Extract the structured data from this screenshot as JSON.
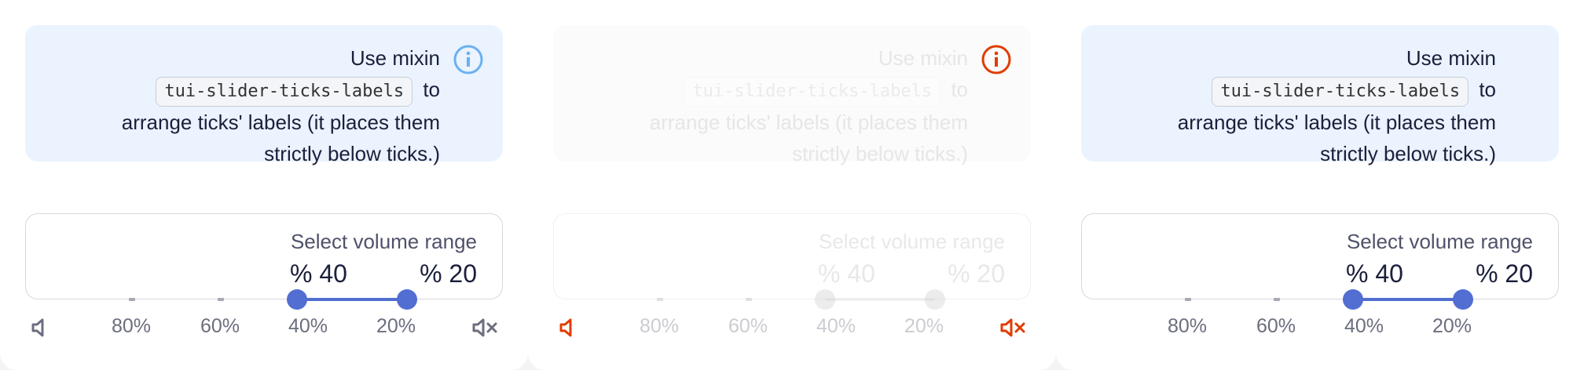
{
  "colors": {
    "accent": "#526ed3",
    "info": "#6bb0f0",
    "warning": "#e03c00"
  },
  "panels": [
    {
      "notice": {
        "prefix": "Use mixin",
        "code": "tui-slider-ticks-labels",
        "text": "to arrange ticks' labels (it places them strictly below ticks.)",
        "icon": "info-icon"
      },
      "field": {
        "label": "Select volume range",
        "value_from": "40 %",
        "value_to": "20 %"
      },
      "ticks": [
        "80%",
        "60%",
        "40%",
        "20%"
      ],
      "start_icon": "volume-low-icon",
      "end_icon": "volume-mute-icon"
    },
    {
      "notice": {
        "prefix": "Use mixin",
        "code": "tui-slider-ticks-labels",
        "text": "to arrange ticks' labels (it places them strictly below ticks.)",
        "icon": "info-icon"
      },
      "field": {
        "label": "Select volume range",
        "value_from": "40 %",
        "value_to": "20 %"
      },
      "ticks": [
        "80%",
        "60%",
        "40%",
        "20%"
      ],
      "start_icon": "volume-low-icon",
      "end_icon": "volume-mute-icon"
    },
    {
      "notice": {
        "prefix": "Use mixin",
        "code": "tui-slider-ticks-labels",
        "text": "to arrange ticks' labels (it places them strictly below ticks.)",
        "icon": "info-icon"
      },
      "field": {
        "label": "Select volume range",
        "value_from": "40 %",
        "value_to": "20 %"
      },
      "ticks": [
        "80%",
        "60%",
        "40%",
        "20%"
      ]
    }
  ]
}
